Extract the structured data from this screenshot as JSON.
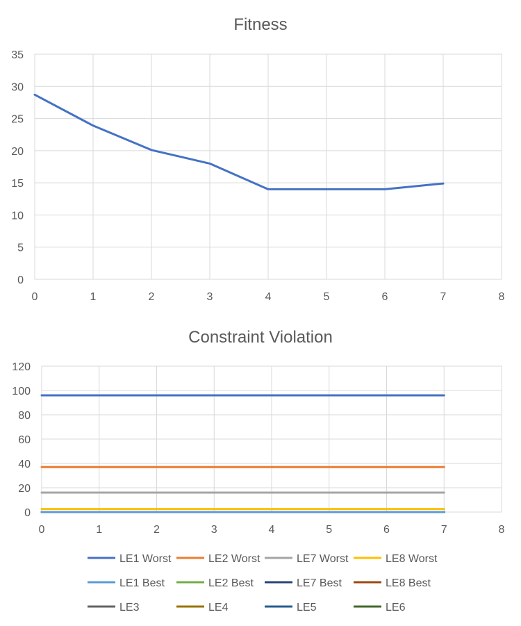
{
  "chart_data": [
    {
      "type": "line",
      "title": "Fitness",
      "xlabel": "",
      "ylabel": "",
      "xlim": [
        0,
        8
      ],
      "ylim": [
        0,
        35
      ],
      "xticks": [
        "0",
        "1",
        "2",
        "3",
        "4",
        "5",
        "6",
        "7",
        "8"
      ],
      "yticks": [
        "0",
        "5",
        "10",
        "15",
        "20",
        "25",
        "30",
        "35"
      ],
      "grid": true,
      "legend": "none",
      "series": [
        {
          "name": "",
          "color": "#4472C4",
          "x": [
            0,
            1,
            2,
            3,
            4,
            5,
            6,
            7
          ],
          "values": [
            28.7,
            23.9,
            20.1,
            18.0,
            14.0,
            14.0,
            14.0,
            14.9
          ]
        }
      ]
    },
    {
      "type": "line",
      "title": "Constraint Violation",
      "xlabel": "",
      "ylabel": "",
      "xlim": [
        0,
        8
      ],
      "ylim": [
        0,
        120
      ],
      "xticks": [
        "0",
        "1",
        "2",
        "3",
        "4",
        "5",
        "6",
        "7",
        "8"
      ],
      "yticks": [
        "0",
        "20",
        "40",
        "60",
        "80",
        "100",
        "120"
      ],
      "grid": true,
      "legend": "bottom",
      "series": [
        {
          "name": "LE1 Worst",
          "color": "#4472C4",
          "x": [
            0,
            1,
            2,
            3,
            4,
            5,
            6,
            7
          ],
          "values": [
            96,
            96,
            96,
            96,
            96,
            96,
            96,
            96
          ]
        },
        {
          "name": "LE2 Worst",
          "color": "#ED7D31",
          "x": [
            0,
            1,
            2,
            3,
            4,
            5,
            6,
            7
          ],
          "values": [
            37,
            37,
            37,
            37,
            37,
            37,
            37,
            37
          ]
        },
        {
          "name": "LE7 Worst",
          "color": "#A5A5A5",
          "x": [
            0,
            1,
            2,
            3,
            4,
            5,
            6,
            7
          ],
          "values": [
            16,
            16,
            16,
            16,
            16,
            16,
            16,
            16
          ]
        },
        {
          "name": "LE8 Worst",
          "color": "#FFC000",
          "x": [
            0,
            1,
            2,
            3,
            4,
            5,
            6,
            7
          ],
          "values": [
            2.5,
            2.5,
            2.5,
            2.5,
            2.5,
            2.5,
            2.5,
            2.5
          ]
        },
        {
          "name": "LE1 Best",
          "color": "#5B9BD5",
          "x": [
            0,
            1,
            2,
            3,
            4,
            5,
            6,
            7
          ],
          "values": [
            0,
            0,
            0,
            0,
            0,
            0,
            0,
            0
          ]
        },
        {
          "name": "LE2 Best",
          "color": "#70AD47",
          "x": [
            0,
            1,
            2,
            3,
            4,
            5,
            6,
            7
          ],
          "values": [
            0,
            0,
            0,
            0,
            0,
            0,
            0,
            0
          ]
        },
        {
          "name": "LE7 Best",
          "color": "#264478",
          "x": [
            0,
            1,
            2,
            3,
            4,
            5,
            6,
            7
          ],
          "values": [
            0,
            0,
            0,
            0,
            0,
            0,
            0,
            0
          ]
        },
        {
          "name": "LE8 Best",
          "color": "#9E480E",
          "x": [
            0,
            1,
            2,
            3,
            4,
            5,
            6,
            7
          ],
          "values": [
            0,
            0,
            0,
            0,
            0,
            0,
            0,
            0
          ]
        },
        {
          "name": "LE3",
          "color": "#636363",
          "x": [
            0,
            1,
            2,
            3,
            4,
            5,
            6,
            7
          ],
          "values": [
            0,
            0,
            0,
            0,
            0,
            0,
            0,
            0
          ]
        },
        {
          "name": "LE4",
          "color": "#997300",
          "x": [
            0,
            1,
            2,
            3,
            4,
            5,
            6,
            7
          ],
          "values": [
            0,
            0,
            0,
            0,
            0,
            0,
            0,
            0
          ]
        },
        {
          "name": "LE5",
          "color": "#255E91",
          "x": [
            0,
            1,
            2,
            3,
            4,
            5,
            6,
            7
          ],
          "values": [
            0,
            0,
            0,
            0,
            0,
            0,
            0,
            0
          ]
        },
        {
          "name": "LE6",
          "color": "#43682B",
          "x": [
            0,
            1,
            2,
            3,
            4,
            5,
            6,
            7
          ],
          "values": [
            0,
            0,
            0,
            0,
            0,
            0,
            0,
            0
          ]
        }
      ]
    }
  ]
}
